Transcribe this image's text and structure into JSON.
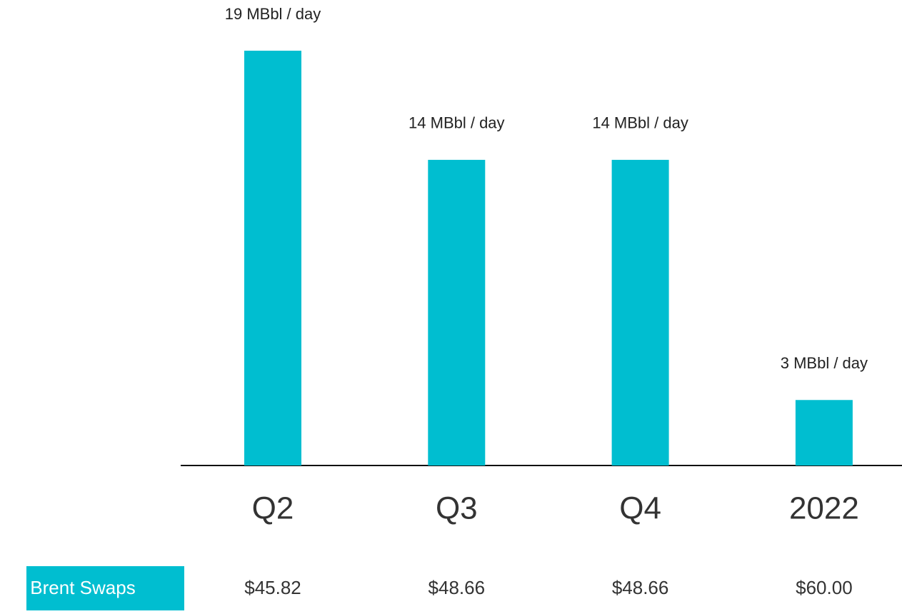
{
  "chart_data": {
    "type": "bar",
    "categories": [
      "Q2",
      "Q3",
      "Q4",
      "2022"
    ],
    "values": [
      19,
      14,
      14,
      3
    ],
    "value_labels": [
      "19 MBbl / day",
      "14 MBbl / day",
      "14 MBbl / day",
      "3 MBbl / day"
    ],
    "color": "#00bed0",
    "row_label": "Brent Swaps",
    "row_values": [
      "$45.82",
      "$48.66",
      "$48.66",
      "$60.00"
    ]
  }
}
